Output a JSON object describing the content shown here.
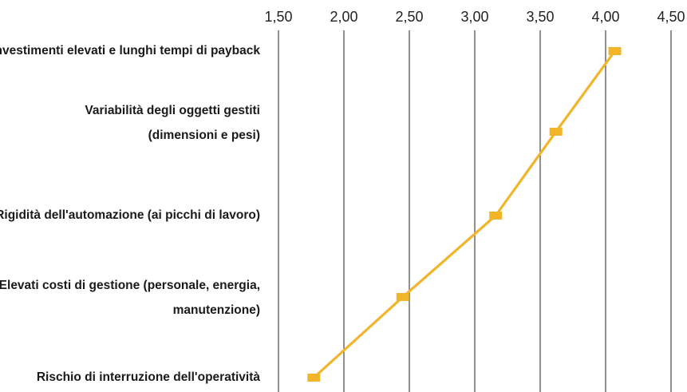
{
  "chart_data": {
    "type": "line",
    "orientation": "horizontal-values",
    "x_ticks": [
      "1,50",
      "2,00",
      "2,50",
      "3,00",
      "3,50",
      "4,00",
      "4,50"
    ],
    "x_tick_values": [
      1.5,
      2.0,
      2.5,
      3.0,
      3.5,
      4.0,
      4.5
    ],
    "xlim": [
      1.5,
      4.5
    ],
    "x_axis_position": "top",
    "grid": "vertical",
    "legend": "none",
    "categories": [
      [
        "Investimenti elevati e lunghi tempi di payback"
      ],
      [
        "Variabilità degli oggetti gestiti",
        "(dimensioni e pesi)"
      ],
      [
        "Rigidità dell'automazione (ai picchi di lavoro)"
      ],
      [
        "Elevati costi di gestione (personale, energia,",
        "manutenzione)"
      ],
      [
        "Rischio di interruzione dell'operatività"
      ]
    ],
    "values": [
      4.07,
      3.62,
      3.16,
      2.45,
      1.77
    ],
    "colors": {
      "series": "#f2b52a",
      "grid": "#555555",
      "text": "#1a1a1a"
    }
  }
}
